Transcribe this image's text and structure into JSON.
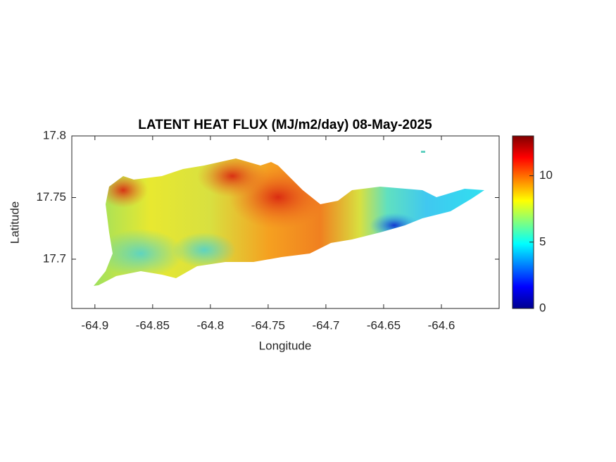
{
  "chart_data": {
    "type": "heatmap",
    "title": "LATENT HEAT FLUX (MJ/m2/day) 08-May-2025",
    "x_label": "Longitude",
    "y_label": "Latitude",
    "xlim": [
      -64.92,
      -64.55
    ],
    "xticks": [
      -64.9,
      -64.85,
      -64.8,
      -64.75,
      -64.7,
      -64.65,
      -64.6
    ],
    "ylim": [
      17.66,
      17.8
    ],
    "yticks": [
      17.7,
      17.75,
      17.8
    ],
    "colormap": "jet",
    "colorbar": {
      "lim": [
        0,
        13
      ],
      "ticks": [
        0,
        5,
        10
      ]
    }
  }
}
